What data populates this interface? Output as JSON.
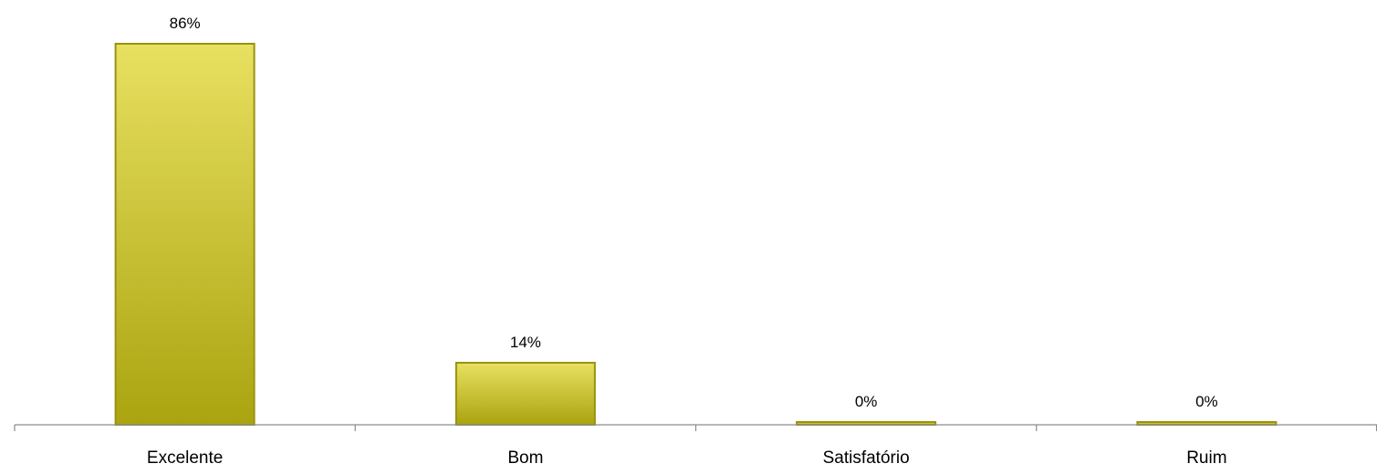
{
  "chart_data": {
    "type": "bar",
    "categories": [
      "Excelente",
      "Bom",
      "Satisfatório",
      "Ruim"
    ],
    "values": [
      86,
      14,
      0,
      0
    ],
    "data_labels": [
      "86%",
      "14%",
      "0%",
      "0%"
    ],
    "ylim": [
      0,
      86
    ],
    "grid": false,
    "legend": "none",
    "colors": {
      "bar_top": "#e8e060",
      "bar_bottom": "#aaa410",
      "bar_stroke": "#9a9210",
      "axis": "#8c8c8c"
    }
  }
}
